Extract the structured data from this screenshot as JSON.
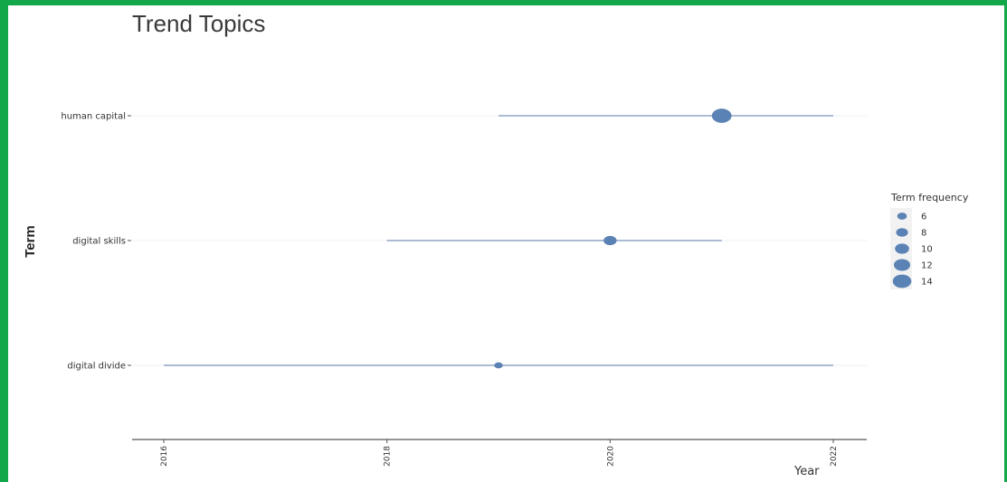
{
  "colors": {
    "frame": "#12a84a",
    "point": "#5b82b4",
    "segment": "#aabbd3",
    "gridline": "#eef0f3",
    "axis": "#555555"
  },
  "chart_data": {
    "type": "scatter",
    "title": "Trend Topics",
    "xlabel": "Year",
    "ylabel": "Term",
    "xlim": [
      2016,
      2022
    ],
    "x_ticks": [
      "2016",
      "2018",
      "2020",
      "2022"
    ],
    "grid": true,
    "legend": {
      "title": "Term frequency",
      "placement": "right",
      "sizes": [
        6,
        8,
        10,
        12,
        14
      ],
      "labels": [
        "6",
        "8",
        "10",
        "12",
        "14"
      ]
    },
    "terms": [
      {
        "label": "human capital",
        "start": 2019,
        "median": 2021,
        "end": 2022,
        "frequency": 15
      },
      {
        "label": "digital skills",
        "start": 2018,
        "median": 2020,
        "end": 2021,
        "frequency": 9
      },
      {
        "label": "digital divide",
        "start": 2016,
        "median": 2019,
        "end": 2022,
        "frequency": 5
      }
    ]
  }
}
